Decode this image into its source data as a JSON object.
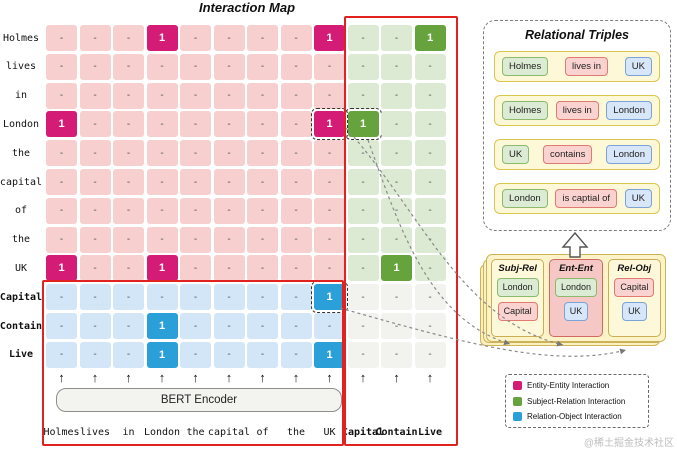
{
  "title": "Interaction Map",
  "watermark": "@稀土掘金技术社区",
  "encoder": {
    "label": "BERT Encoder"
  },
  "matrix": {
    "row_labels": [
      "Holmes",
      "lives",
      "in",
      "London",
      "the",
      "capital",
      "of",
      "the",
      "UK",
      "Capital",
      "Contain",
      "Live"
    ],
    "bottom_tokens": [
      "Holmes",
      "lives",
      "in",
      "London",
      "the",
      "capital",
      "of",
      "the",
      "UK",
      "Capital",
      "Contain",
      "Live"
    ],
    "n_words": 9,
    "n_relations": 3,
    "empty_cell": "-",
    "filled_cell": "1",
    "highlights": [
      {
        "row": 0,
        "col": 3,
        "type": "entity-entity"
      },
      {
        "row": 0,
        "col": 8,
        "type": "entity-entity"
      },
      {
        "row": 0,
        "col": 11,
        "type": "subject-relation"
      },
      {
        "row": 3,
        "col": 0,
        "type": "entity-entity"
      },
      {
        "row": 3,
        "col": 8,
        "type": "entity-entity",
        "dashed": true
      },
      {
        "row": 3,
        "col": 9,
        "type": "subject-relation",
        "dashed": true
      },
      {
        "row": 8,
        "col": 0,
        "type": "entity-entity"
      },
      {
        "row": 8,
        "col": 3,
        "type": "entity-entity"
      },
      {
        "row": 8,
        "col": 10,
        "type": "subject-relation"
      },
      {
        "row": 9,
        "col": 8,
        "type": "relation-object",
        "dashed": true
      },
      {
        "row": 10,
        "col": 3,
        "type": "relation-object"
      },
      {
        "row": 11,
        "col": 3,
        "type": "relation-object"
      },
      {
        "row": 11,
        "col": 8,
        "type": "relation-object"
      }
    ]
  },
  "triples_panel": {
    "title": "Relational Triples",
    "triples": [
      {
        "subject": "Holmes",
        "relation": "lives in",
        "object": "UK"
      },
      {
        "subject": "Holmes",
        "relation": "lives in",
        "object": "London"
      },
      {
        "subject": "UK",
        "relation": "contains",
        "object": "London"
      },
      {
        "subject": "London",
        "relation": "is captial of",
        "object": "UK"
      }
    ]
  },
  "cards": [
    {
      "title": "Subj-Rel",
      "variant": "yellow",
      "items": [
        {
          "text": "London",
          "role": "subject"
        },
        {
          "text": "Capital",
          "role": "relation"
        }
      ]
    },
    {
      "title": "Ent-Ent",
      "variant": "pink",
      "items": [
        {
          "text": "London",
          "role": "subject"
        },
        {
          "text": "UK",
          "role": "object"
        }
      ]
    },
    {
      "title": "Rel-Obj",
      "variant": "yellow",
      "items": [
        {
          "text": "Capital",
          "role": "relation"
        },
        {
          "text": "UK",
          "role": "object"
        }
      ]
    }
  ],
  "legend": [
    {
      "color": "#d41c77",
      "label": "Entity-Entity Interaction"
    },
    {
      "color": "#67a33c",
      "label": "Subject-Relation Interaction"
    },
    {
      "color": "#2b9fd8",
      "label": "Relation-Object Interaction"
    }
  ],
  "colors": {
    "entity_entity": "#d41c77",
    "subject_relation": "#67a33c",
    "relation_object": "#2b9fd8",
    "word_word_bg": "#f7cfcf",
    "word_rel_bg": "#dcead4",
    "rel_word_bg": "#d3e6f7",
    "rel_rel_bg": "#f2f2ef",
    "highlight_frame": "#e02220"
  }
}
